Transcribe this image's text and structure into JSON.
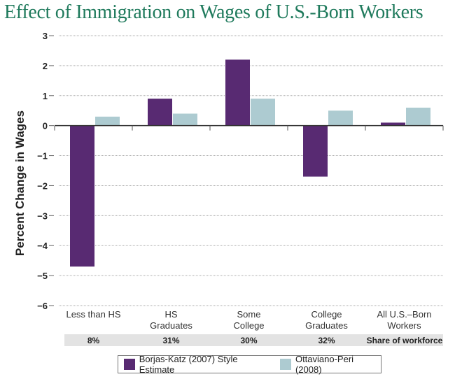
{
  "chart_data": {
    "type": "bar",
    "title": "Effect of Immigration on Wages of U.S.-Born Workers",
    "ylabel": "Percent Change in Wages",
    "xlabel": "",
    "ylim": [
      -6,
      3
    ],
    "yticks": [
      3,
      2,
      1,
      0,
      -1,
      -2,
      -3,
      -4,
      -5,
      -6
    ],
    "grid": true,
    "legend_position": "bottom",
    "categories": [
      [
        "Less than HS"
      ],
      [
        "HS",
        "Graduates"
      ],
      [
        "Some",
        "College"
      ],
      [
        "College",
        "Graduates"
      ],
      [
        "All U.S.–Born",
        "Workers"
      ]
    ],
    "series": [
      {
        "name": "Borjas-Katz (2007) Style Estimate",
        "color": "#582a72",
        "values": [
          -4.7,
          0.9,
          2.2,
          -1.7,
          0.1
        ]
      },
      {
        "name": "Ottaviano-Peri (2008)",
        "color": "#adcbd1",
        "values": [
          0.3,
          0.4,
          0.9,
          0.5,
          0.6
        ]
      }
    ],
    "share_of_workforce": {
      "label": "Share of workforce",
      "values": [
        "8%",
        "31%",
        "30%",
        "32%"
      ]
    }
  }
}
